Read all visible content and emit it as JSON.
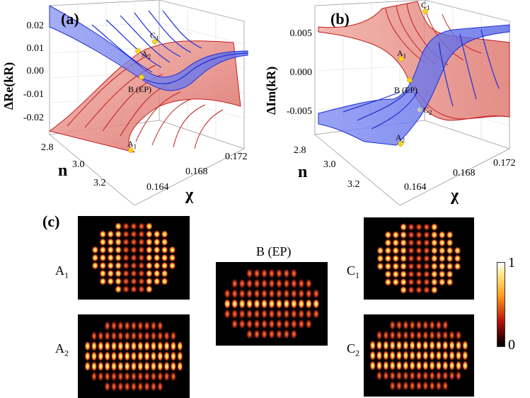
{
  "panel_a": {
    "label": "(a)",
    "ylabel": "ΔRe(kR)",
    "yticks": [
      "0.02",
      "0.01",
      "0.00",
      "-0.01",
      "-0.02"
    ],
    "n_label": "n",
    "n_ticks": [
      "2.8",
      "3.0",
      "3.2"
    ],
    "chi_label": "χ",
    "chi_ticks": [
      "0.164",
      "0.168",
      "0.172"
    ],
    "points": [
      {
        "main": "C",
        "sub": "1"
      },
      {
        "main": "A",
        "sub": "2"
      },
      {
        "main": "B (EP)",
        "sub": ""
      },
      {
        "main": "A",
        "sub": "1"
      }
    ]
  },
  "panel_b": {
    "label": "(b)",
    "ylabel": "ΔIm(kR)",
    "yticks": [
      "0.005",
      "0.000",
      "-0.005"
    ],
    "n_label": "n",
    "n_ticks": [
      "2.8",
      "3.0",
      "3.2"
    ],
    "chi_label": "χ",
    "chi_ticks": [
      "0.164",
      "0.168",
      "0.172"
    ],
    "points": [
      {
        "main": "C",
        "sub": "1"
      },
      {
        "main": "A",
        "sub": "1"
      },
      {
        "main": "B (EP)",
        "sub": ""
      },
      {
        "main": "C",
        "sub": "2"
      },
      {
        "main": "A",
        "sub": "2"
      }
    ]
  },
  "panel_c": {
    "label": "(c)",
    "modes": [
      {
        "main": "A",
        "sub": "1"
      },
      {
        "main": "A",
        "sub": "2"
      },
      {
        "main": "B (EP)",
        "sub": ""
      },
      {
        "main": "C",
        "sub": "1"
      },
      {
        "main": "C",
        "sub": "2"
      }
    ],
    "colorbar_max": "1",
    "colorbar_min": "0"
  },
  "colors": {
    "red_surface": "#e8877f",
    "blue_surface": "#6f7cf0",
    "red_line": "#c41e1e",
    "blue_line": "#1f2fd6",
    "marker": "#ffd31a"
  }
}
